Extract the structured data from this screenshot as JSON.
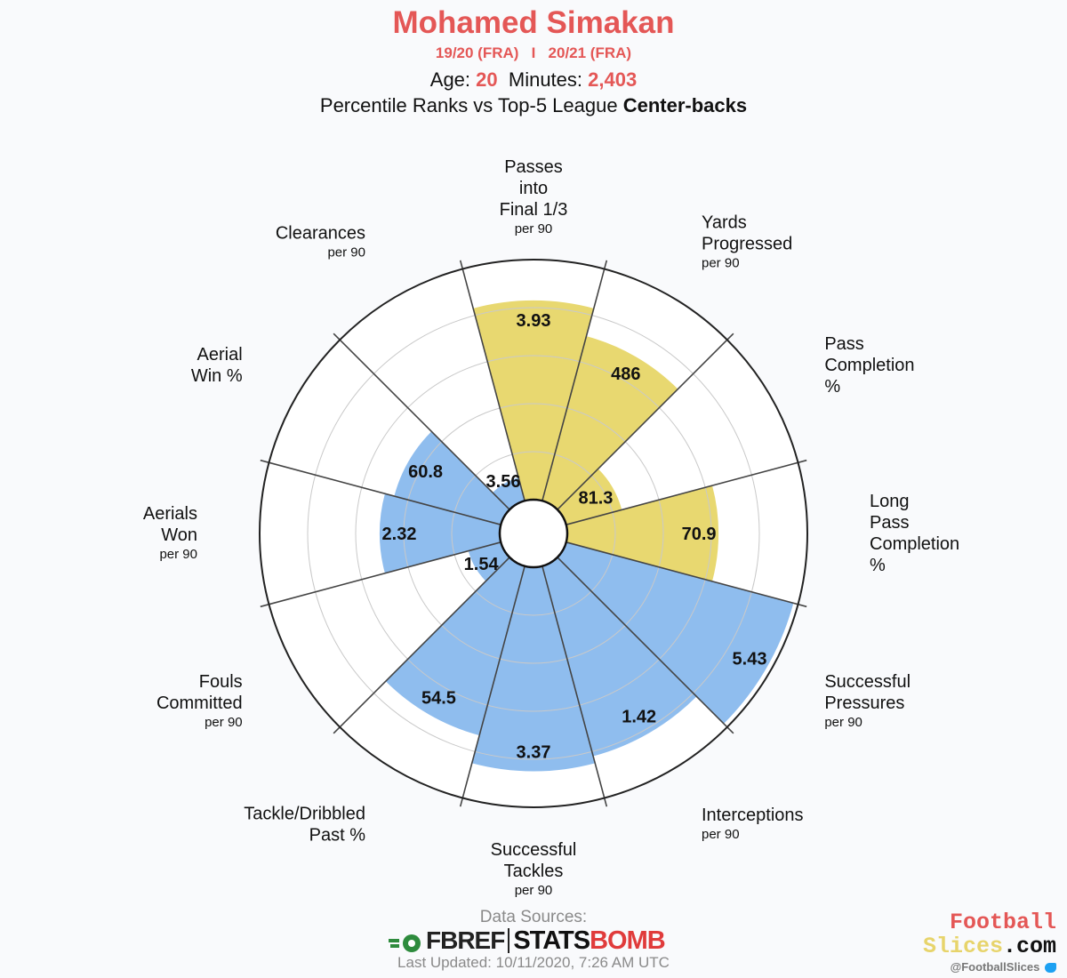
{
  "header": {
    "player_name": "Mohamed Simakan",
    "season_1": "19/20 (FRA)",
    "season_sep": "I",
    "season_2": "20/21 (FRA)",
    "age_label": "Age:",
    "age_value": "20",
    "minutes_label": "Minutes:",
    "minutes_value": "2,403",
    "subtitle_prefix": "Percentile Ranks vs Top-5 League",
    "subtitle_bold": "Center-backs"
  },
  "colors": {
    "attacking": "#e8d870",
    "defending": "#8fbdee",
    "title": "#e45756"
  },
  "chart_data": {
    "type": "pie",
    "subtype": "polar-area",
    "metrics": [
      {
        "label_lines": [
          "Passes",
          "into",
          "Final 1/3"
        ],
        "per90": "per 90",
        "value": "3.93",
        "percentile": 83,
        "group": "attacking"
      },
      {
        "label_lines": [
          "Yards",
          "Progressed"
        ],
        "per90": "per 90",
        "value": "486",
        "percentile": 71,
        "group": "attacking"
      },
      {
        "label_lines": [
          "Pass",
          "Completion",
          "%"
        ],
        "per90": "",
        "value": "81.3",
        "percentile": 24,
        "group": "attacking"
      },
      {
        "label_lines": [
          "Long",
          "Pass",
          "Completion",
          "%"
        ],
        "per90": "",
        "value": "70.9",
        "percentile": 63,
        "group": "attacking"
      },
      {
        "label_lines": [
          "Successful",
          "Pressures"
        ],
        "per90": "per 90",
        "value": "5.43",
        "percentile": 98,
        "group": "defending"
      },
      {
        "label_lines": [
          "Interceptions"
        ],
        "per90": "per 90",
        "value": "1.42",
        "percentile": 82,
        "group": "defending"
      },
      {
        "label_lines": [
          "Successful",
          "Tackles"
        ],
        "per90": "per 90",
        "value": "3.37",
        "percentile": 85,
        "group": "defending"
      },
      {
        "label_lines": [
          "Tackle/Dribbled",
          "Past %"
        ],
        "per90": "",
        "value": "54.5",
        "percentile": 73,
        "group": "defending"
      },
      {
        "label_lines": [
          "Fouls",
          "Committed"
        ],
        "per90": "per 90",
        "value": "1.54",
        "percentile": 14,
        "group": "defending"
      },
      {
        "label_lines": [
          "Aerials",
          "Won"
        ],
        "per90": "per 90",
        "value": "2.32",
        "percentile": 50,
        "group": "defending"
      },
      {
        "label_lines": [
          "Aerial",
          "Win %"
        ],
        "per90": "",
        "value": "60.8",
        "percentile": 46,
        "group": "defending"
      },
      {
        "label_lines": [
          "Clearances"
        ],
        "per90": "per 90",
        "value": "3.56",
        "percentile": 10,
        "group": "defending"
      }
    ],
    "rlim": [
      0,
      100
    ],
    "grid": true,
    "legend": "none"
  },
  "footer": {
    "sources_label": "Data Sources:",
    "fbref_logo": "FBREF",
    "statsbomb_logo_a": "STATS",
    "statsbomb_logo_b": "BOMB",
    "last_updated": "Last Updated: 10/11/2020, 7:26 AM UTC",
    "brand_line1": "Football",
    "brand_line2a": "Slices",
    "brand_line2b": ".com",
    "brand_handle": "@FootballSlices"
  }
}
